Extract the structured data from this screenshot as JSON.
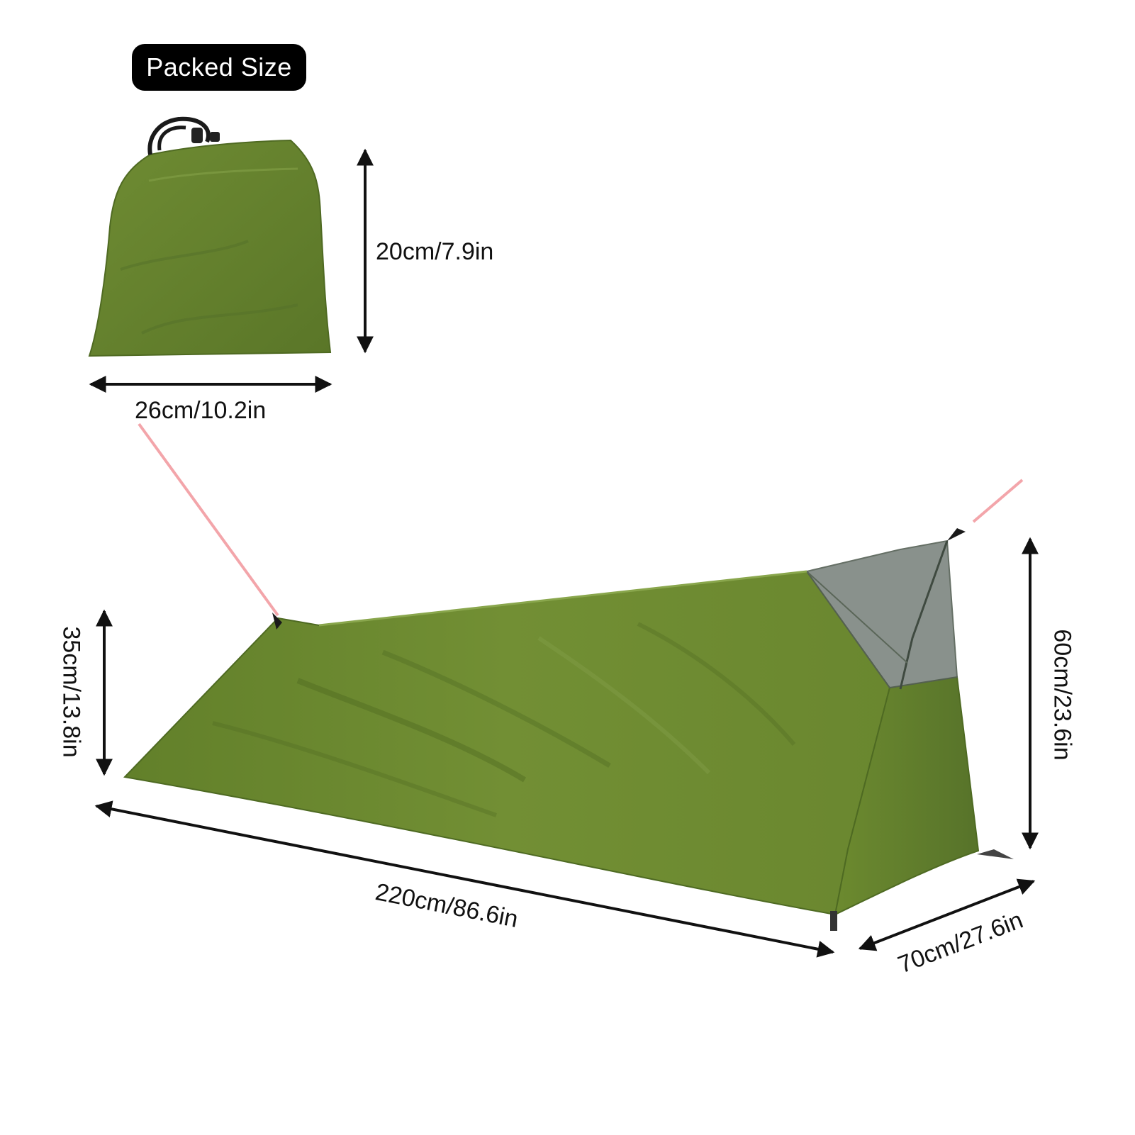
{
  "packed": {
    "label": "Packed Size",
    "height": "20cm/7.9in",
    "width": "26cm/10.2in"
  },
  "tent": {
    "length": "220cm/86.6in",
    "width": "70cm/27.6in",
    "front_height": "60cm/23.6in",
    "rear_height": "35cm/13.8in"
  },
  "colors": {
    "fabric": "#6b8a2e",
    "fabric_dark": "#56722a",
    "mesh": "#7d8680",
    "guyline": "#f3a5aa",
    "arrow": "#111111",
    "badge": "#000000"
  },
  "icons": [
    "drawstring-bag-icon",
    "bivy-tent-icon",
    "double-arrow-icon"
  ]
}
